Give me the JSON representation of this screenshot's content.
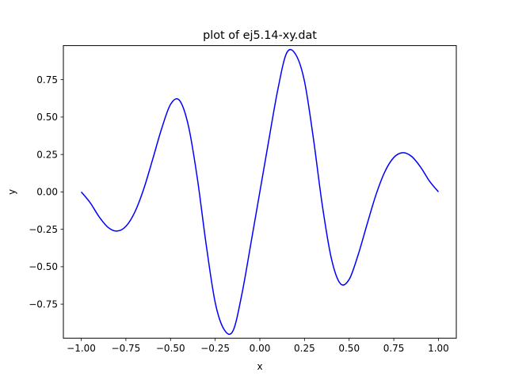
{
  "chart_data": {
    "type": "line",
    "title": "plot of ej5.14-xy.dat",
    "xlabel": "x",
    "ylabel": "y",
    "xlim": [
      -1.1,
      1.1
    ],
    "ylim": [
      -0.9778,
      0.9778
    ],
    "xticks": [
      -1.0,
      -0.75,
      -0.5,
      -0.25,
      0.0,
      0.25,
      0.5,
      0.75,
      1.0
    ],
    "xtick_labels": [
      "−1.00",
      "−0.75",
      "−0.50",
      "−0.25",
      "0.00",
      "0.25",
      "0.50",
      "0.75",
      "1.00"
    ],
    "yticks": [
      -0.75,
      -0.5,
      -0.25,
      0.0,
      0.25,
      0.5,
      0.75
    ],
    "ytick_labels": [
      "−0.75",
      "−0.50",
      "−0.25",
      "0.00",
      "0.25",
      "0.50",
      "0.75"
    ],
    "grid": false,
    "legend": "none",
    "series": [
      {
        "color": "#0000ff",
        "x": [
          -1.0,
          -0.95,
          -0.9,
          -0.85,
          -0.8,
          -0.75,
          -0.7,
          -0.65,
          -0.6,
          -0.55,
          -0.5,
          -0.45,
          -0.4,
          -0.35,
          -0.3,
          -0.25,
          -0.2,
          -0.15,
          -0.1,
          -0.05,
          0.0,
          0.05,
          0.1,
          0.15,
          0.2,
          0.25,
          0.3,
          0.35,
          0.4,
          0.45,
          0.5,
          0.55,
          0.6,
          0.65,
          0.7,
          0.75,
          0.8,
          0.85,
          0.9,
          0.95,
          1.0
        ],
        "y": [
          0.0,
          -0.072,
          -0.166,
          -0.237,
          -0.262,
          -0.23,
          -0.135,
          0.02,
          0.218,
          0.422,
          0.585,
          0.612,
          0.442,
          0.091,
          -0.356,
          -0.739,
          -0.92,
          -0.928,
          -0.68,
          -0.344,
          0.0,
          0.344,
          0.68,
          0.928,
          0.92,
          0.739,
          0.356,
          -0.091,
          -0.442,
          -0.612,
          -0.585,
          -0.422,
          -0.218,
          -0.02,
          0.135,
          0.23,
          0.262,
          0.237,
          0.166,
          0.072,
          0.0
        ]
      }
    ]
  }
}
